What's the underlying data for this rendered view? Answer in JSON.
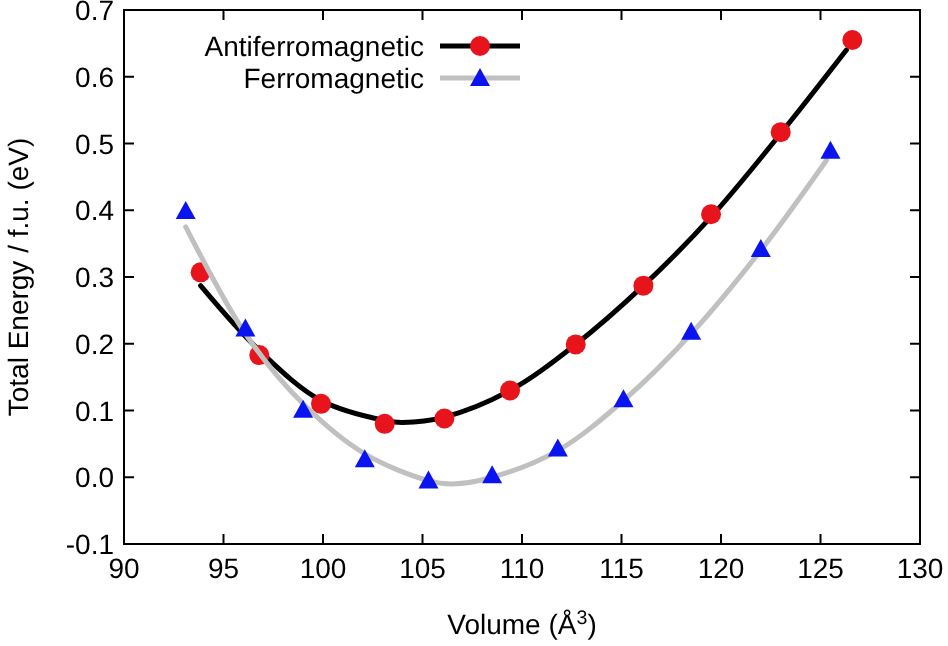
{
  "chart_data": {
    "type": "scatter",
    "xlabel": "Volume (Å$^{3}$)",
    "ylabel": "Total Energy / f.u. (eV)",
    "xlim": [
      90,
      130
    ],
    "xticks": [
      90,
      95,
      100,
      105,
      110,
      115,
      120,
      125,
      130
    ],
    "ylim": [
      -0.1,
      0.7
    ],
    "yticks": [
      {
        "value": -0.1,
        "label": "-0.1"
      },
      {
        "value": 0,
        "label": "0.0"
      },
      0.1,
      0.2,
      0.3,
      0.4,
      0.5,
      0.6,
      0.7
    ],
    "grid": false,
    "legend": "top left",
    "series": [
      {
        "type": "line",
        "color": "#000000",
        "marker": "none",
        "x": [
          93.85,
          96.8,
          99.9,
          103.1,
          104,
          106.1,
          109.4,
          112.7,
          116.1,
          119.5,
          123,
          126.3
        ],
        "values": [
          0.287,
          0.19,
          0.115,
          0.085,
          0.082,
          0.09,
          0.13,
          0.199,
          0.287,
          0.39,
          0.515,
          0.64
        ]
      },
      {
        "name": "Antiferromagnetic",
        "color": "#e8141c",
        "marker": "circle",
        "x": [
          93.85,
          96.8,
          99.9,
          103.1,
          106.1,
          109.4,
          112.7,
          116.1,
          119.5,
          123.0,
          126.6
        ],
        "values": [
          0.307,
          0.183,
          0.11,
          0.08,
          0.088,
          0.13,
          0.199,
          0.287,
          0.394,
          0.517,
          0.655
        ]
      },
      {
        "type": "line",
        "color": "#c0c0c0",
        "marker": "none",
        "x": [
          93.1,
          96.1,
          99.0,
          102.1,
          105.3,
          106.5,
          108.5,
          111.8,
          115.1,
          118.5,
          122,
          125.3
        ],
        "values": [
          0.375,
          0.215,
          0.11,
          0.035,
          -0.005,
          -0.01,
          0.0,
          0.04,
          0.115,
          0.215,
          0.34,
          0.475
        ]
      },
      {
        "name": "Ferromagnetic",
        "color": "#0a14f0",
        "marker": "triangle",
        "x": [
          93.1,
          96.1,
          99.0,
          102.1,
          105.3,
          108.5,
          111.8,
          115.1,
          118.5,
          122.0,
          125.5
        ],
        "values": [
          0.399,
          0.223,
          0.101,
          0.027,
          -0.005,
          0.003,
          0.043,
          0.117,
          0.218,
          0.342,
          0.489
        ]
      }
    ]
  }
}
